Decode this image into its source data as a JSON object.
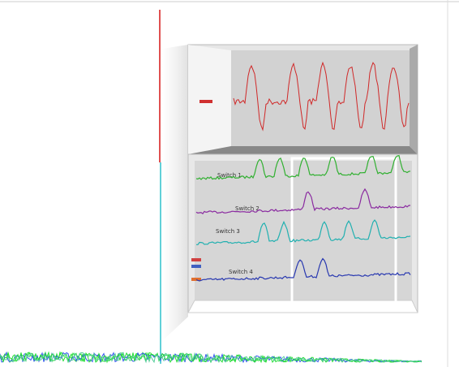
{
  "traces": [
    {
      "label": "Switch 1"
    },
    {
      "label": "Switch 2"
    },
    {
      "label": "Switch 3"
    },
    {
      "label": "Switch 4"
    }
  ]
}
